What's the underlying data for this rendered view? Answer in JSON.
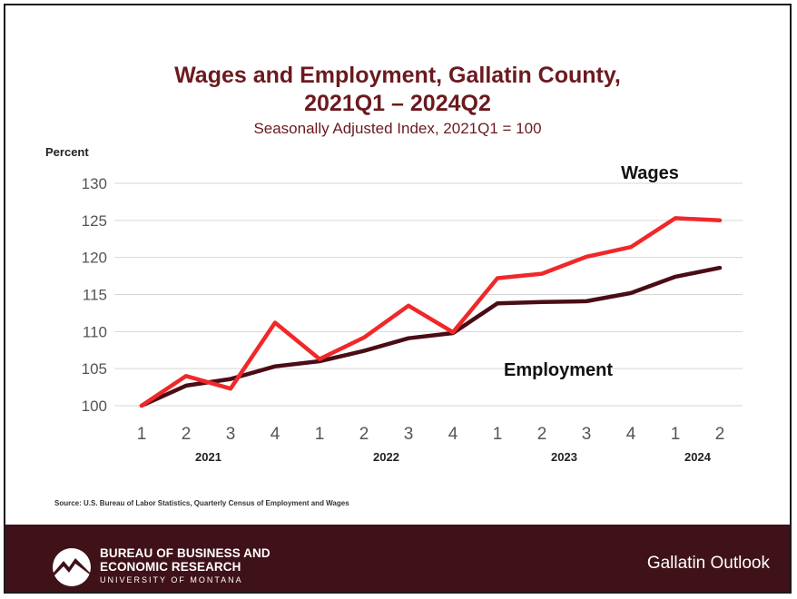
{
  "colors": {
    "title": "#6b1a1f",
    "wages": "#f0282a",
    "employment": "#4a0d15",
    "footer": "#3f1118",
    "grid": "#d6d6d6",
    "axis_text": "#555555"
  },
  "chart_data": {
    "type": "line",
    "title_line1": "Wages and Employment, Gallatin County,",
    "title_line2": "2021Q1 – 2024Q2",
    "subtitle": "Seasonally Adjusted Index, 2021Q1 = 100",
    "ylabel": "Percent",
    "ylim": [
      100,
      130
    ],
    "yticks": [
      100,
      105,
      110,
      115,
      120,
      125,
      130
    ],
    "grid": true,
    "categories": [
      "1",
      "2",
      "3",
      "4",
      "1",
      "2",
      "3",
      "4",
      "1",
      "2",
      "3",
      "4",
      "1",
      "2"
    ],
    "years": [
      {
        "label": "2021",
        "quarters": [
          0,
          1,
          2,
          3
        ]
      },
      {
        "label": "2022",
        "quarters": [
          4,
          5,
          6,
          7
        ]
      },
      {
        "label": "2023",
        "quarters": [
          8,
          9,
          10,
          11
        ]
      },
      {
        "label": "2024",
        "quarters": [
          12,
          13
        ]
      }
    ],
    "series": [
      {
        "name": "Wages",
        "values": [
          100,
          104,
          102.3,
          111.2,
          106.3,
          109.2,
          113.5,
          109.9,
          117.2,
          117.8,
          120.1,
          121.4,
          125.3,
          125.0
        ]
      },
      {
        "name": "Employment",
        "values": [
          100,
          102.7,
          103.6,
          105.3,
          106.0,
          107.4,
          109.1,
          109.8,
          113.8,
          114.0,
          114.1,
          115.2,
          117.4,
          118.6
        ]
      }
    ]
  },
  "source": "Source:  U.S. Bureau of Labor Statistics, Quarterly Census of Employment and Wages",
  "footer": {
    "org_line1": "BUREAU OF BUSINESS AND",
    "org_line2": "ECONOMIC RESEARCH",
    "org_line3": "UNIVERSITY OF MONTANA",
    "outlook": "Gallatin Outlook",
    "logo_icon": "mountain-logo-icon"
  }
}
